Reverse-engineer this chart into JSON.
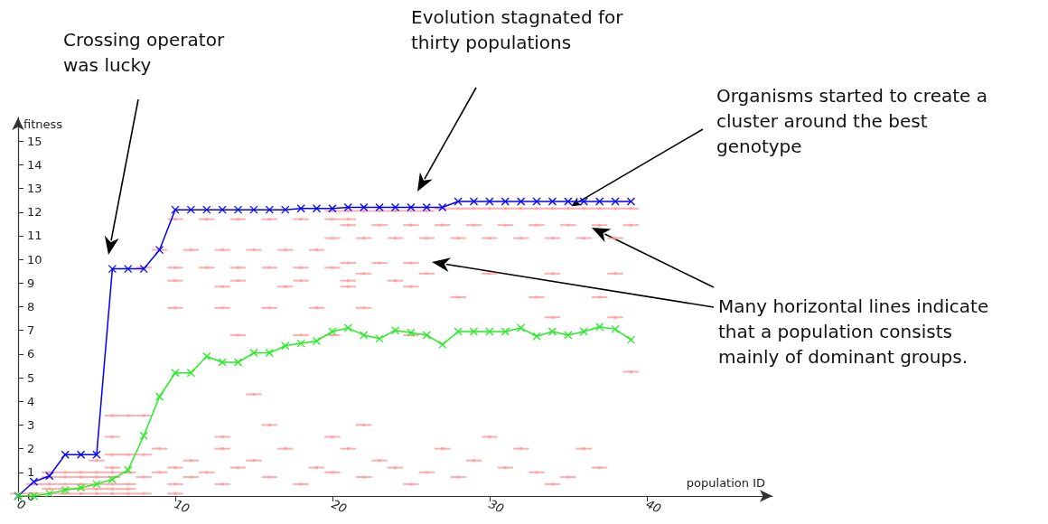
{
  "chart_data": {
    "type": "line",
    "xlabel": "population ID",
    "ylabel": "fitness",
    "xlim": [
      0,
      48
    ],
    "ylim": [
      0,
      16
    ],
    "xticks": [
      0,
      10,
      20,
      30,
      40
    ],
    "yticks": [
      0,
      1,
      2,
      3,
      4,
      5,
      6,
      7,
      8,
      9,
      10,
      11,
      12,
      13,
      14,
      15
    ],
    "grid": false,
    "line_style": "solid",
    "annotations": [
      "Crossing operator was lucky",
      "Evolution stagnated for thirty populations",
      {
        "text": "Organisms started to create a cluster around the best genotype",
        "x": 35.2,
        "y": 12.25
      },
      "Many horizontal lines indicate that a population consists mainly of dominant groups."
    ],
    "series": [
      {
        "type": "scatter",
        "color": "#ff9a9a",
        "marker": "square",
        "xerrors": [
          0.5,
          0.5,
          0.5,
          0.5,
          0.5,
          0.5,
          0.5,
          0.5,
          0.5,
          0.5,
          0.5,
          0.5,
          0.5,
          0.5,
          0.5,
          0.5,
          0.5,
          0.5,
          0.5,
          0.5,
          0.5,
          0.5,
          0.5,
          0.5,
          0.5,
          0.5,
          0.5,
          0.5,
          0.5,
          0.5,
          0.5,
          0.5,
          0.5,
          0.5,
          0.5,
          0.5,
          0.5,
          0.5,
          0.5,
          0.5,
          0.5,
          0.5,
          0.5,
          0.5,
          0.5,
          0.5,
          0.5,
          0.5,
          0.5,
          0.5,
          0.5,
          0.5,
          0.5,
          0.5,
          0.5,
          0.5,
          0.5,
          0.5,
          0.5,
          0.5,
          0.5,
          0.5,
          0.5,
          0.5,
          0.5,
          0.5,
          0.5,
          0.5,
          0.5,
          0.5,
          0.5,
          0.5,
          0.5,
          0.5,
          0.5,
          0.5,
          0.5,
          0.5,
          0.5,
          0.5,
          0.5,
          0.5,
          0.5,
          0.5,
          0.5,
          0.5,
          0.5,
          0.5,
          0.5,
          0.5,
          0.5,
          0.5,
          0.5,
          0.5,
          0.5,
          0.5,
          0.5,
          0.5,
          0.5,
          0.5,
          0.5,
          0.5,
          0.5,
          0.5,
          0.5,
          0.5,
          0.5,
          0.5,
          0.5,
          0.5,
          0.5,
          0.5,
          0.5,
          0.5,
          0.5,
          0.5,
          0.5,
          0.5,
          0.5,
          0.5,
          0.5,
          0.5,
          0.5,
          0.5,
          0.5,
          0.5,
          0.5,
          0.5,
          0.5,
          0.5,
          0.5,
          0.5,
          0.5,
          0.5,
          0.5,
          0.5,
          0.5,
          0.5,
          0.5,
          0.5,
          0.5,
          0.5,
          0.5,
          0.5,
          0.5,
          0.5,
          0.5,
          0.5,
          0.5,
          0.5,
          0.5,
          0.5,
          0.5,
          0.5,
          0.5,
          0.5,
          0.5,
          0.5,
          0.5,
          0.5,
          0.5,
          0.5,
          0.5,
          0.5,
          0.5,
          0.5,
          0.5,
          0.5,
          0.5,
          0.5,
          0.5,
          0.5,
          0.5,
          0.5
        ],
        "x": [
          27,
          28,
          29,
          30,
          31,
          32,
          33,
          34,
          35,
          36,
          37,
          38,
          39,
          20,
          21,
          22,
          23,
          24,
          25,
          26,
          10,
          12,
          14,
          16,
          18,
          20,
          21,
          21,
          23,
          25,
          27,
          29,
          31,
          33,
          35,
          37,
          39,
          20,
          22,
          24,
          26,
          28,
          30,
          32,
          34,
          36,
          38,
          9,
          11,
          13,
          15,
          17,
          19,
          8,
          10,
          12,
          14,
          16,
          18,
          20,
          21,
          23,
          25,
          22,
          26,
          30,
          34,
          38,
          10,
          14,
          18,
          21,
          24,
          13,
          17,
          21,
          25,
          28,
          33,
          37,
          10,
          13,
          16,
          19,
          22,
          34,
          38,
          14,
          18,
          20,
          25,
          39,
          15,
          6,
          7,
          8,
          16,
          22,
          6,
          13,
          20,
          30,
          9,
          13,
          17,
          21,
          27,
          32,
          36,
          6,
          7,
          8,
          5,
          11,
          15,
          23,
          29,
          6,
          10,
          14,
          19,
          24,
          31,
          37,
          2,
          3,
          4,
          5,
          6,
          7,
          9,
          12,
          20,
          26,
          33,
          2,
          3,
          4,
          5,
          6,
          8,
          11,
          16,
          22,
          28,
          35,
          1,
          2,
          3,
          4,
          5,
          6,
          7,
          10,
          13,
          18,
          25,
          34,
          2,
          3,
          4,
          5,
          6,
          7,
          0,
          1,
          2,
          3,
          4,
          5,
          6,
          7,
          8,
          10
        ],
        "values": [
          12.15,
          12.15,
          12.15,
          12.15,
          12.15,
          12.15,
          12.15,
          12.15,
          12.15,
          12.15,
          12.15,
          12.15,
          12.15,
          12.05,
          12.05,
          12.05,
          12.05,
          12.05,
          12.05,
          12.05,
          11.7,
          11.7,
          11.7,
          11.7,
          11.7,
          11.7,
          11.7,
          11.45,
          11.45,
          11.45,
          11.45,
          11.45,
          11.45,
          11.45,
          11.45,
          11.45,
          11.45,
          10.9,
          10.9,
          10.9,
          10.9,
          10.9,
          10.9,
          10.9,
          10.9,
          10.9,
          10.9,
          10.4,
          10.4,
          10.4,
          10.4,
          10.4,
          10.4,
          9.65,
          9.65,
          9.65,
          9.65,
          9.65,
          9.65,
          9.65,
          9.85,
          9.85,
          9.85,
          9.4,
          9.4,
          9.4,
          9.4,
          9.4,
          9.1,
          9.1,
          9.1,
          9.1,
          9.1,
          8.85,
          8.85,
          8.85,
          8.85,
          8.4,
          8.4,
          8.4,
          7.95,
          7.95,
          7.95,
          7.95,
          7.95,
          7.55,
          7.55,
          6.8,
          6.8,
          6.8,
          6.8,
          5.25,
          4.3,
          3.4,
          3.4,
          3.4,
          3.0,
          3.0,
          2.5,
          2.5,
          2.5,
          2.5,
          2.0,
          2.0,
          2.0,
          2.0,
          2.0,
          2.0,
          2.0,
          1.75,
          1.75,
          1.75,
          1.5,
          1.5,
          1.5,
          1.5,
          1.5,
          1.2,
          1.2,
          1.2,
          1.2,
          1.2,
          1.2,
          1.2,
          1.0,
          1.0,
          1.0,
          1.0,
          1.0,
          1.0,
          1.0,
          1.0,
          1.0,
          1.0,
          1.0,
          0.8,
          0.8,
          0.8,
          0.8,
          0.8,
          0.8,
          0.8,
          0.8,
          0.8,
          0.8,
          0.8,
          0.5,
          0.5,
          0.5,
          0.5,
          0.5,
          0.5,
          0.5,
          0.5,
          0.5,
          0.5,
          0.5,
          0.5,
          0.3,
          0.3,
          0.3,
          0.3,
          0.3,
          0.3,
          0.1,
          0.1,
          0.1,
          0.1,
          0.1,
          0.1,
          0.1,
          0.1,
          0.1,
          0.1
        ]
      },
      {
        "marker": "cross",
        "color": "#0000ff",
        "x": [
          0,
          1,
          2,
          3,
          4,
          5,
          6,
          7,
          8,
          9,
          10,
          11,
          12,
          13,
          14,
          15,
          16,
          17,
          18,
          19,
          20,
          21,
          22,
          23,
          24,
          25,
          26,
          27,
          28,
          29,
          30,
          31,
          32,
          33,
          34,
          35,
          36,
          37,
          38,
          39
        ],
        "values": [
          0,
          0.6,
          0.85,
          1.75,
          1.75,
          1.75,
          9.6,
          9.6,
          9.6,
          10.4,
          12.1,
          12.1,
          12.1,
          12.1,
          12.1,
          12.1,
          12.1,
          12.1,
          12.15,
          12.15,
          12.15,
          12.2,
          12.2,
          12.2,
          12.2,
          12.2,
          12.2,
          12.2,
          12.45,
          12.45,
          12.45,
          12.45,
          12.45,
          12.45,
          12.45,
          12.45,
          12.45,
          12.45,
          12.45,
          12.45
        ]
      },
      {
        "marker": "cross",
        "color": "#22ee22",
        "x": [
          0,
          1,
          2,
          3,
          4,
          5,
          6,
          7,
          8,
          9,
          10,
          11,
          12,
          13,
          14,
          15,
          16,
          17,
          18,
          19,
          20,
          21,
          22,
          23,
          24,
          25,
          26,
          27,
          28,
          29,
          30,
          31,
          32,
          33,
          34,
          35,
          36,
          37,
          38,
          39
        ],
        "values": [
          0,
          0,
          0.1,
          0.25,
          0.35,
          0.5,
          0.7,
          1.1,
          2.55,
          4.2,
          5.2,
          5.2,
          5.9,
          5.65,
          5.65,
          6.05,
          6.05,
          6.35,
          6.45,
          6.55,
          6.95,
          7.1,
          6.8,
          6.65,
          7.0,
          6.9,
          6.8,
          6.4,
          6.95,
          6.95,
          6.95,
          6.95,
          7.1,
          6.75,
          6.95,
          6.8,
          6.95,
          7.15,
          7.05,
          6.6
        ]
      }
    ]
  }
}
